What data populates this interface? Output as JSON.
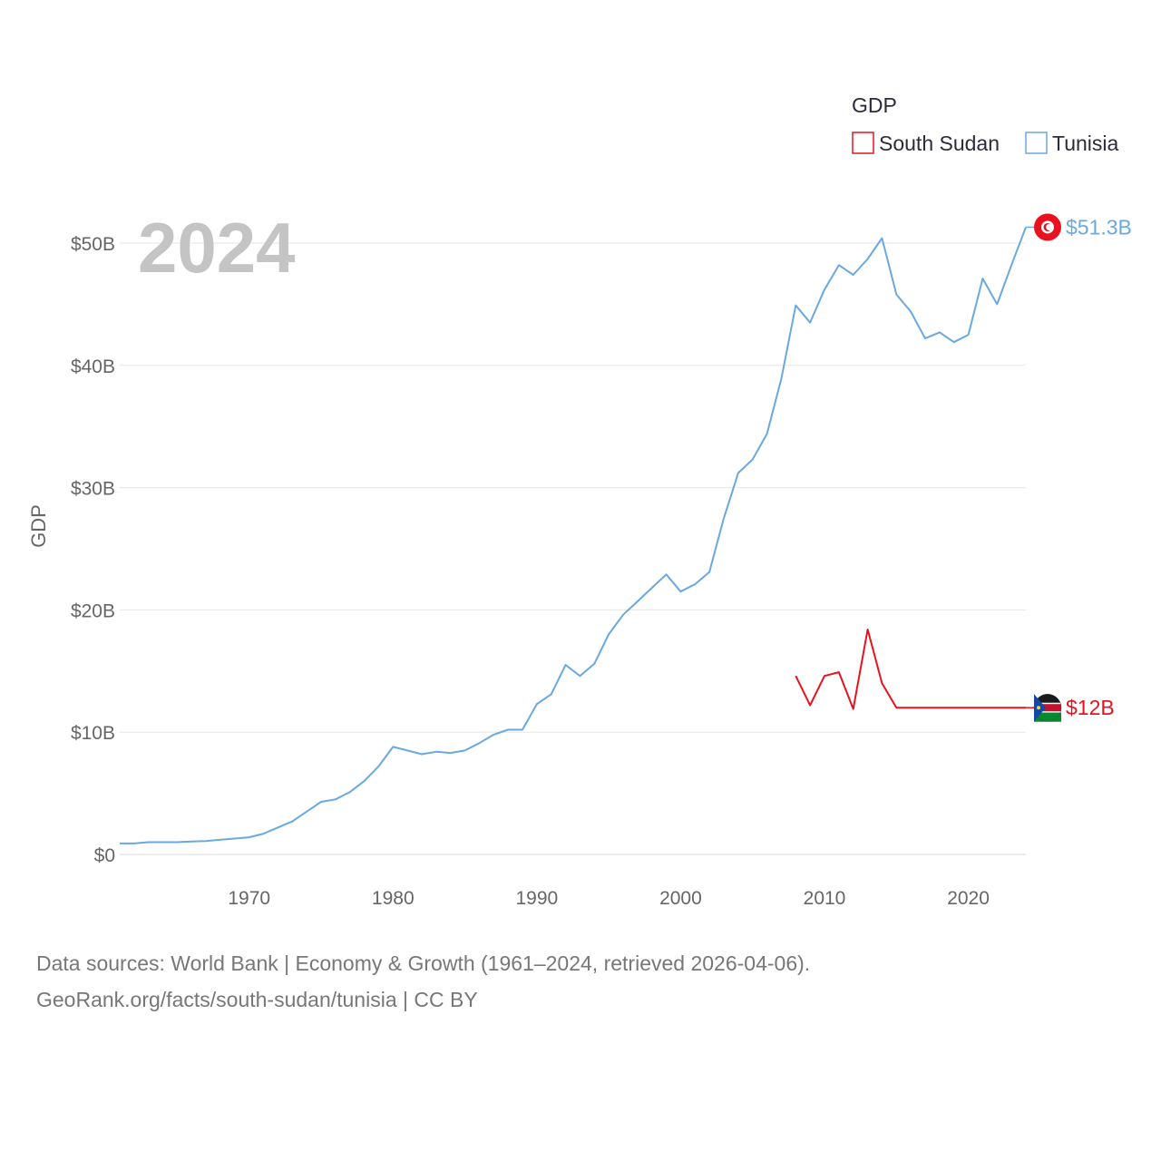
{
  "chart_data": {
    "type": "line",
    "title": "",
    "year_label": "2024",
    "xlabel": "",
    "ylabel": "GDP",
    "xlim": [
      1961,
      2024
    ],
    "ylim": [
      0,
      52
    ],
    "x_ticks": [
      1970,
      1980,
      1990,
      2000,
      2010,
      2020
    ],
    "y_ticks": [
      {
        "value": 0,
        "label": "$0"
      },
      {
        "value": 10,
        "label": "$10B"
      },
      {
        "value": 20,
        "label": "$20B"
      },
      {
        "value": 30,
        "label": "$30B"
      },
      {
        "value": 40,
        "label": "$40B"
      },
      {
        "value": 50,
        "label": "$50B"
      }
    ],
    "legend": {
      "title": "GDP",
      "position": "top-right"
    },
    "units": "billions of US dollars",
    "series": [
      {
        "name": "South Sudan",
        "color": "#e8121f",
        "end_label": "$12B",
        "x": [
          2008,
          2009,
          2010,
          2011,
          2012,
          2013,
          2014,
          2015,
          2016,
          2017,
          2018,
          2019,
          2020,
          2021,
          2022,
          2023,
          2024
        ],
        "values": [
          14.6,
          12.2,
          14.6,
          14.9,
          11.9,
          18.4,
          14.0,
          12.0,
          12.0,
          12.0,
          12.0,
          12.0,
          12.0,
          12.0,
          12.0,
          12.0,
          12.0
        ]
      },
      {
        "name": "Tunisia",
        "color": "#6aa8e0",
        "end_label": "$51.3B",
        "x": [
          1961,
          1962,
          1963,
          1964,
          1965,
          1966,
          1967,
          1968,
          1969,
          1970,
          1971,
          1972,
          1973,
          1974,
          1975,
          1976,
          1977,
          1978,
          1979,
          1980,
          1981,
          1982,
          1983,
          1984,
          1985,
          1986,
          1987,
          1988,
          1989,
          1990,
          1991,
          1992,
          1993,
          1994,
          1995,
          1996,
          1997,
          1998,
          1999,
          2000,
          2001,
          2002,
          2003,
          2004,
          2005,
          2006,
          2007,
          2008,
          2009,
          2010,
          2011,
          2012,
          2013,
          2014,
          2015,
          2016,
          2017,
          2018,
          2019,
          2020,
          2021,
          2022,
          2023,
          2024
        ],
        "values": [
          0.9,
          0.9,
          1.0,
          1.0,
          1.0,
          1.05,
          1.1,
          1.2,
          1.3,
          1.4,
          1.7,
          2.2,
          2.7,
          3.5,
          4.3,
          4.5,
          5.1,
          6.0,
          7.2,
          8.8,
          8.5,
          8.2,
          8.4,
          8.3,
          8.5,
          9.1,
          9.8,
          10.2,
          10.2,
          12.3,
          13.1,
          15.5,
          14.6,
          15.6,
          18.0,
          19.6,
          20.7,
          21.8,
          22.9,
          21.5,
          22.1,
          23.1,
          27.5,
          31.2,
          32.3,
          34.4,
          38.9,
          44.9,
          43.5,
          46.2,
          48.2,
          47.4,
          48.7,
          50.4,
          45.8,
          44.4,
          42.2,
          42.7,
          41.9,
          42.5,
          47.1,
          45.0,
          48.2,
          51.3
        ]
      }
    ]
  },
  "source": {
    "line1": "Data sources: World Bank | Economy & Growth (1961–2024, retrieved 2026-04-06).",
    "line2": "GeoRank.org/facts/south-sudan/tunisia | CC BY"
  }
}
